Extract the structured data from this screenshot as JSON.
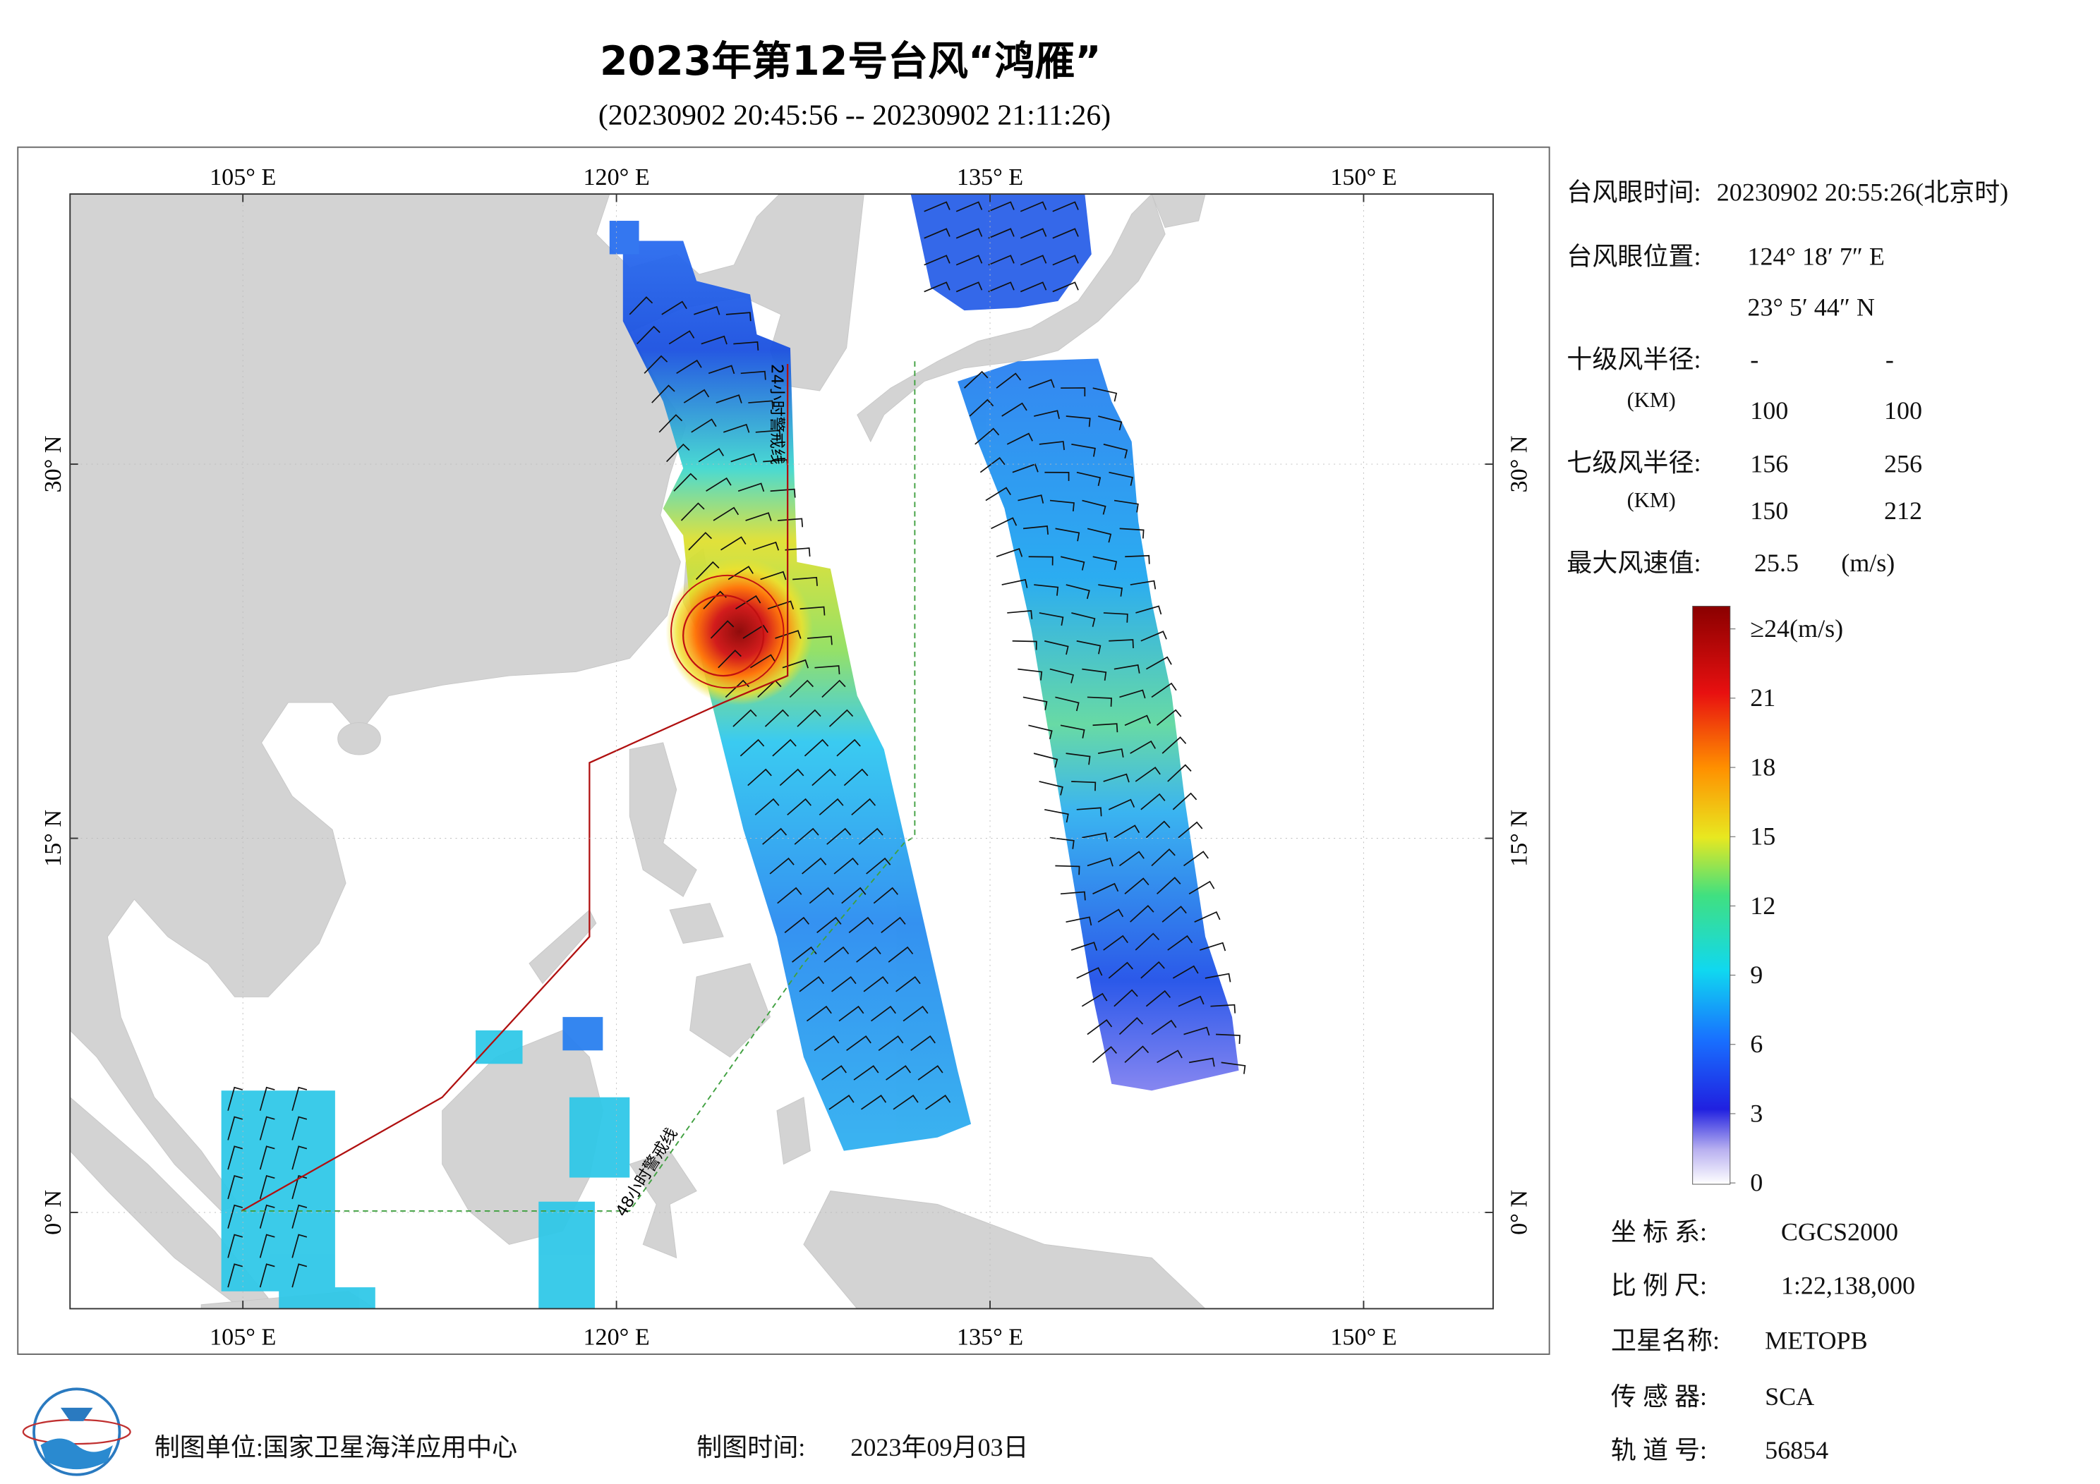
{
  "title": "2023年第12号台风“鸿雁”",
  "subtitle": "(20230902 20:45:56 -- 20230902 21:11:26)",
  "map": {
    "lonlim": [
      98.06,
      155.2
    ],
    "latlim": [
      -3.86,
      40.83
    ],
    "lon_ticks": [
      {
        "value": 105,
        "label": "105° E"
      },
      {
        "value": 120,
        "label": "120° E"
      },
      {
        "value": 135,
        "label": "135° E"
      },
      {
        "value": 150,
        "label": "150° E"
      }
    ],
    "lat_ticks": [
      {
        "value": 0,
        "label": "0° N"
      },
      {
        "value": 15,
        "label": "15° N"
      },
      {
        "value": 30,
        "label": "30° N"
      }
    ],
    "warning_lines": [
      "24小时警戒线",
      "48小时警戒线"
    ]
  },
  "info": {
    "eye_time_label": "台风眼时间:",
    "eye_time": "20230902 20:55:26(北京时)",
    "eye_position_label": "台风眼位置:",
    "eye_lon": "124° 18′ 7″ E",
    "eye_lat": "23° 5′ 44″ N",
    "r10_label": "十级风半径:",
    "r10_a": "-",
    "r10_b": "-",
    "km_label_1": "(KM)",
    "r10_c": 100,
    "r10_d": 100,
    "r7_label": "七级风半径:",
    "r7_a": 156,
    "r7_b": 256,
    "km_label_2": "(KM)",
    "r7_c": 150,
    "r7_d": 212,
    "max_wind_label": "最大风速值:",
    "max_wind": 25.5,
    "max_wind_unit": "(m/s)"
  },
  "colorbar": {
    "ticks": [
      0,
      3,
      6,
      9,
      12,
      15,
      18,
      21,
      {
        "value": 24,
        "label": "≥24(m/s)"
      }
    ]
  },
  "footer": {
    "crs_label": "坐 标 系:",
    "crs": "CGCS2000",
    "scale_label": "比 例 尺:",
    "scale": "1:22,138,000",
    "satellite_label": "卫星名称:",
    "satellite": "METOPB",
    "sensor_label": "传 感 器:",
    "sensor": "SCA",
    "orbit_label": "轨 道 号:",
    "orbit": 56854,
    "producer": "制图单位:国家卫星海洋应用中心",
    "date_label": "制图时间:",
    "date": "2023年09月03日"
  }
}
